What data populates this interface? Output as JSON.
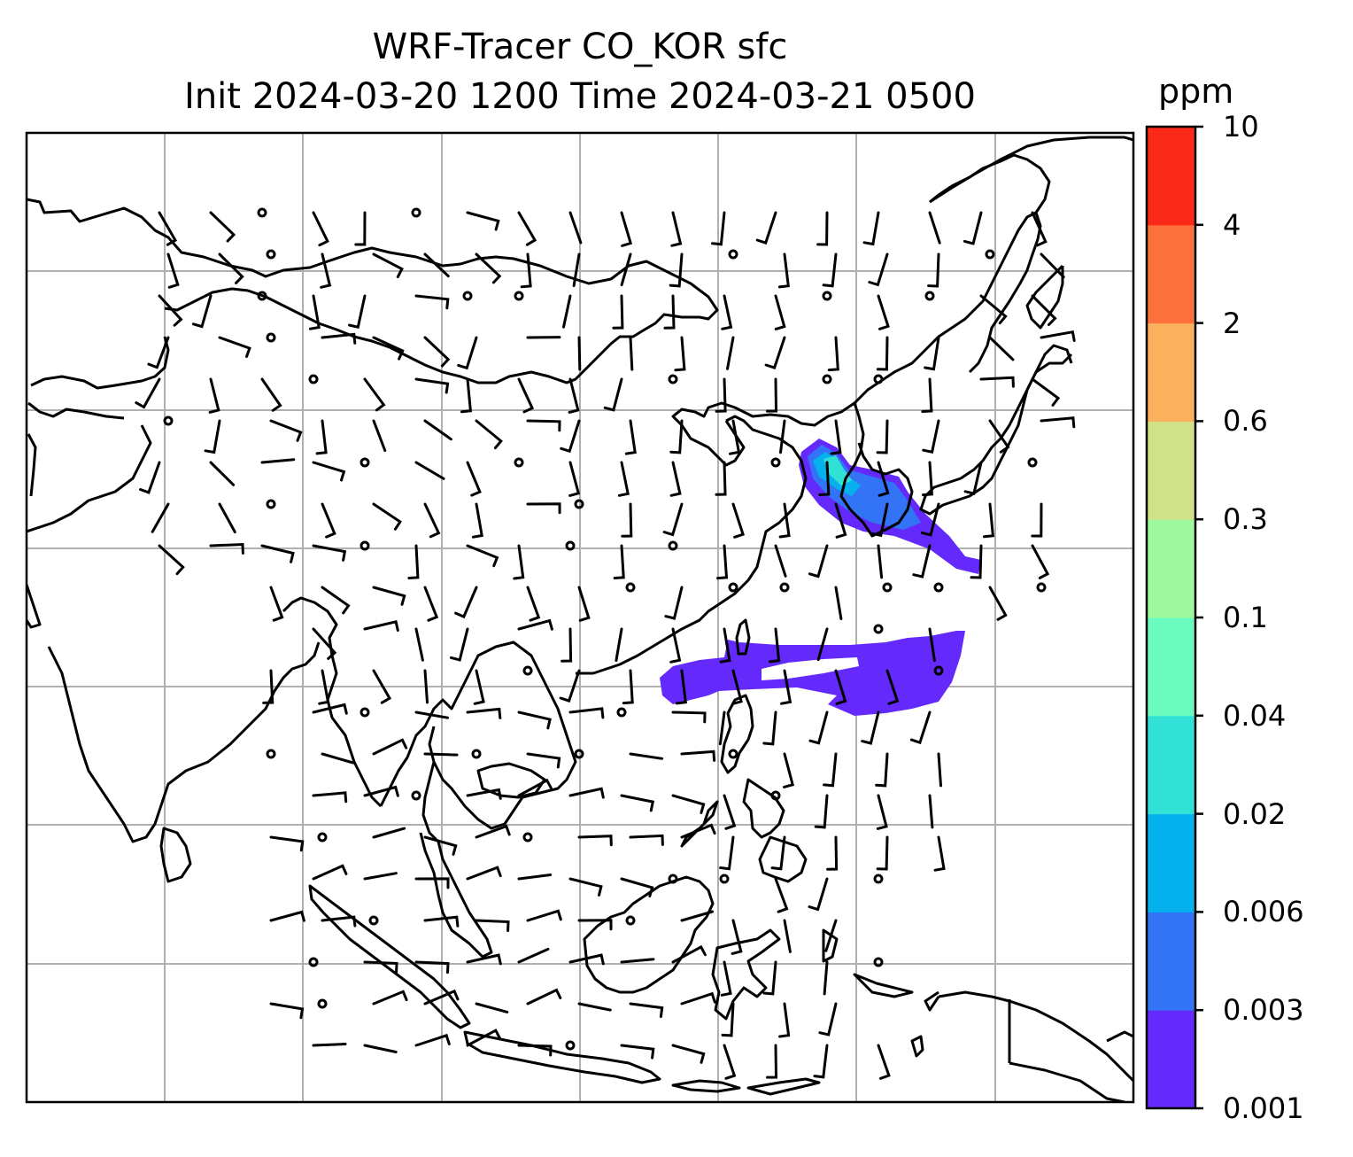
{
  "title": {
    "line1": "WRF-Tracer CO_KOR sfc",
    "line2": "Init 2024-03-20 1200 Time 2024-03-21 0500"
  },
  "colorbar": {
    "unit": "ppm",
    "levels": [
      "0.001",
      "0.003",
      "0.006",
      "0.02",
      "0.04",
      "0.1",
      "0.3",
      "0.6",
      "2",
      "4",
      "10"
    ],
    "colors": [
      "#6429fb",
      "#3274f5",
      "#04b1ec",
      "#31e1d6",
      "#6afbbf",
      "#9ef99e",
      "#d0e187",
      "#fbb05e",
      "#fc713b",
      "#fb2917"
    ]
  },
  "map": {
    "coastline_color": "#000000",
    "grid_color": "#b0b0b0",
    "plume_colors": {
      "outer": "#6429fb",
      "mid": "#3274f5",
      "inner": "#04b1ec",
      "core": "#31e1d6"
    },
    "wind_symbols": "wind barbs (calm circles where no wind)"
  }
}
